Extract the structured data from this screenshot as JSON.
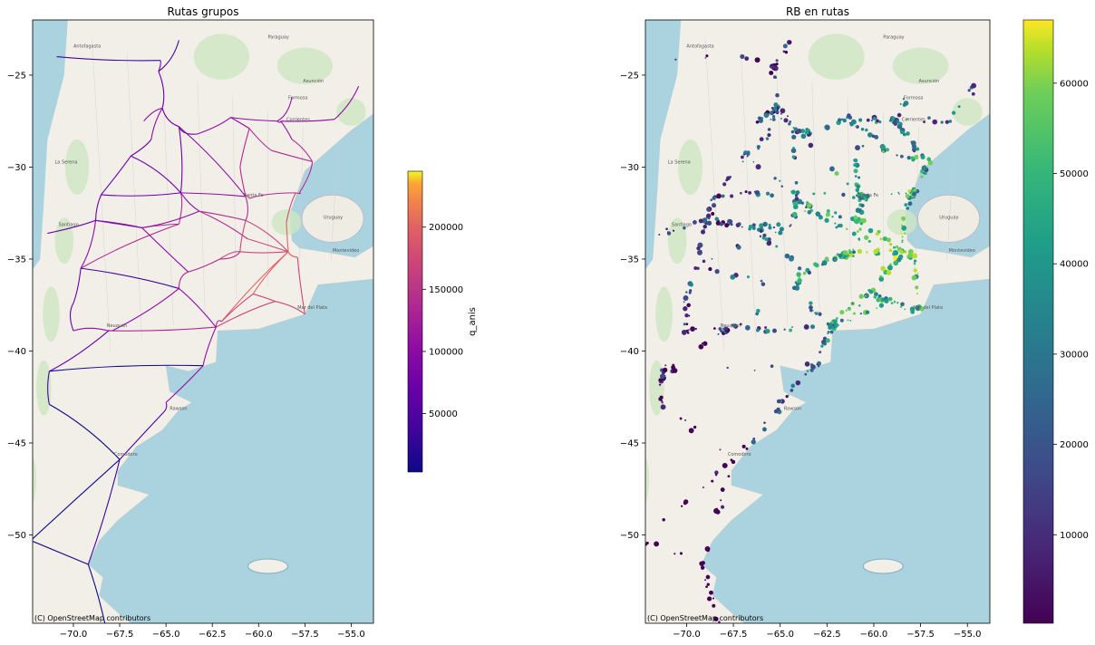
{
  "chart_data": [
    {
      "type": "map-lines",
      "title": "Rutas grupos",
      "xlim": [
        -72.2,
        -53.8
      ],
      "ylim": [
        -54.8,
        -22.0
      ],
      "xticks": [
        -70.0,
        -67.5,
        -65.0,
        -62.5,
        -60.0,
        -57.5,
        -55.0
      ],
      "yticks": [
        -25,
        -30,
        -35,
        -40,
        -45,
        -50
      ],
      "attribution": "(C) OpenStreetMap contributors",
      "colormap": "plasma",
      "colorbar": {
        "label": "q_anis",
        "min": 3000,
        "max": 245000,
        "ticks": [
          50000,
          100000,
          150000,
          200000
        ]
      }
    },
    {
      "type": "map-scatter",
      "title": "RB en rutas",
      "xlim": [
        -72.2,
        -53.8
      ],
      "ylim": [
        -54.8,
        -22.0
      ],
      "xticks": [
        -70.0,
        -67.5,
        -65.0,
        -62.5,
        -60.0,
        -57.5,
        -55.0
      ],
      "yticks": [
        -25,
        -30,
        -35,
        -40,
        -45,
        -50
      ],
      "attribution": "(C) OpenStreetMap contributors",
      "colormap": "viridis",
      "colorbar": {
        "label": "",
        "min": 200,
        "max": 67000,
        "ticks": [
          10000,
          20000,
          30000,
          40000,
          50000,
          60000
        ]
      }
    }
  ],
  "map_labels": [
    "Antofagasta",
    "Paraguay",
    "Asunción",
    "Formosa",
    "Corrientes",
    "Santa Fe",
    "Uruguay",
    "Montevideo",
    "Santiago",
    "La Serena",
    "Mar del Plata",
    "Neuquén",
    "Rawson",
    "Comodoro"
  ]
}
